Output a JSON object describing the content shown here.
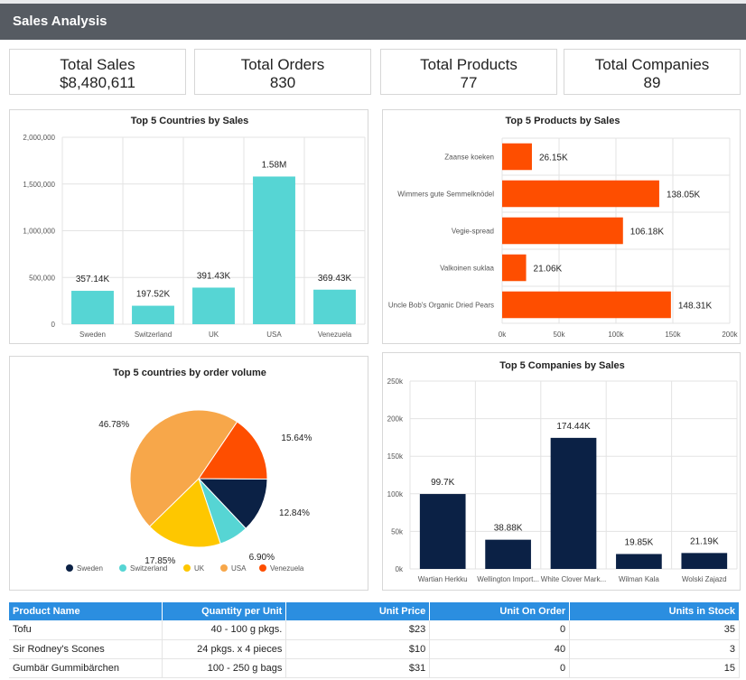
{
  "header": {
    "title": "Sales Analysis"
  },
  "kpis": [
    {
      "label": "Total Sales",
      "value": "$8,480,611"
    },
    {
      "label": "Total Orders",
      "value": "830"
    },
    {
      "label": "Total Products",
      "value": "77"
    },
    {
      "label": "Total Companies",
      "value": "89"
    }
  ],
  "chart_data": [
    {
      "id": "countries",
      "type": "bar",
      "title": "Top 5 Countries by Sales",
      "categories": [
        "Sweden",
        "Switzerland",
        "UK",
        "USA",
        "Venezuela"
      ],
      "values": [
        357140,
        197520,
        391430,
        1580000,
        369430
      ],
      "data_labels": [
        "357.14K",
        "197.52K",
        "391.43K",
        "1.58M",
        "369.43K"
      ],
      "y_ticks": [
        0,
        500000,
        1000000,
        1500000,
        2000000
      ],
      "y_tick_labels": [
        "0",
        "500,000",
        "1,000,000",
        "1,500,000",
        "2,000,000"
      ],
      "ylim": [
        0,
        2000000
      ],
      "color": "#56d5d4"
    },
    {
      "id": "products",
      "type": "bar",
      "orientation": "horizontal",
      "title": "Top 5 Products by Sales",
      "categories": [
        "Zaanse koeken",
        "Wimmers gute Semmelknödel",
        "Vegie-spread",
        "Valkoinen suklaa",
        "Uncle Bob's Organic Dried Pears"
      ],
      "values": [
        26150,
        138050,
        106180,
        21060,
        148310
      ],
      "data_labels": [
        "26.15K",
        "138.05K",
        "106.18K",
        "21.06K",
        "148.31K"
      ],
      "x_ticks": [
        0,
        50000,
        100000,
        150000,
        200000
      ],
      "x_tick_labels": [
        "0k",
        "50k",
        "100k",
        "150k",
        "200k"
      ],
      "xlim": [
        0,
        200000
      ],
      "color": "#fe4e00"
    },
    {
      "id": "order_volume",
      "type": "pie",
      "title": "Top 5 countries by order volume",
      "categories": [
        "Sweden",
        "Switzerland",
        "UK",
        "USA",
        "Venezuela"
      ],
      "values": [
        12.84,
        6.9,
        17.85,
        46.78,
        15.64
      ],
      "data_labels": [
        "12.84%",
        "6.90%",
        "17.85%",
        "46.78%",
        "15.64%"
      ],
      "colors": [
        "#0b2145",
        "#56d5d4",
        "#fec700",
        "#f7a74a",
        "#fe4e00"
      ],
      "legend": "bottom"
    },
    {
      "id": "companies",
      "type": "bar",
      "title": "Top 5 Companies by Sales",
      "categories": [
        "Wartian Herkku",
        "Wellington Import...",
        "White Clover Mark...",
        "Wilman Kala",
        "Wolski Zajazd"
      ],
      "values": [
        99700,
        38880,
        174440,
        19850,
        21190
      ],
      "data_labels": [
        "99.7K",
        "38.88K",
        "174.44K",
        "19.85K",
        "21.19K"
      ],
      "y_ticks": [
        0,
        50000,
        100000,
        150000,
        200000,
        250000
      ],
      "y_tick_labels": [
        "0k",
        "50k",
        "100k",
        "150k",
        "200k",
        "250k"
      ],
      "ylim": [
        0,
        250000
      ],
      "color": "#0b2145"
    }
  ],
  "table": {
    "columns": [
      "Product Name",
      "Quantity per Unit",
      "Unit Price",
      "Unit On Order",
      "Units in Stock"
    ],
    "rows": [
      [
        "Tofu",
        "40 - 100 g pkgs.",
        "$23",
        "0",
        "35"
      ],
      [
        "Sir Rodney's Scones",
        "24 pkgs. x 4 pieces",
        "$10",
        "40",
        "3"
      ],
      [
        "Gumbär Gummibärchen",
        "100 - 250 g bags",
        "$31",
        "0",
        "15"
      ]
    ]
  }
}
